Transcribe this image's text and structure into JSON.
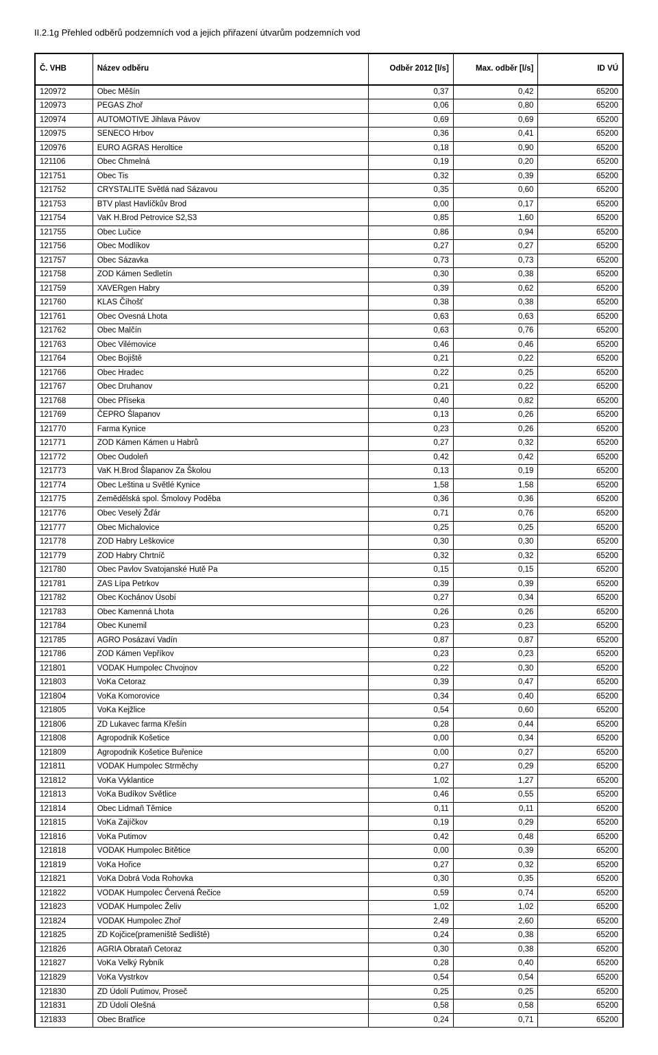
{
  "title": "II.2.1g  Přehled odběrů podzemních vod a jejich přiřazení útvarům podzemních vod",
  "columns": [
    "Č. VHB",
    "Název odběru",
    "Odběr 2012 [l/s]",
    "Max. odběr [l/s]",
    "ID VÚ"
  ],
  "rows": [
    [
      "120972",
      "Obec Měšín",
      "0,37",
      "0,42",
      "65200"
    ],
    [
      "120973",
      "PEGAS Zhoř",
      "0,06",
      "0,80",
      "65200"
    ],
    [
      "120974",
      "AUTOMOTIVE Jihlava Pávov",
      "0,69",
      "0,69",
      "65200"
    ],
    [
      "120975",
      "SENECO Hrbov",
      "0,36",
      "0,41",
      "65200"
    ],
    [
      "120976",
      "EURO AGRAS Heroltice",
      "0,18",
      "0,90",
      "65200"
    ],
    [
      "121106",
      "Obec Chmelná",
      "0,19",
      "0,20",
      "65200"
    ],
    [
      "121751",
      "Obec Tis",
      "0,32",
      "0,39",
      "65200"
    ],
    [
      "121752",
      "CRYSTALITE Světlá nad Sázavou",
      "0,35",
      "0,60",
      "65200"
    ],
    [
      "121753",
      "BTV plast Havlíčkův Brod",
      "0,00",
      "0,17",
      "65200"
    ],
    [
      "121754",
      "VaK H.Brod Petrovice S2,S3",
      "0,85",
      "1,60",
      "65200"
    ],
    [
      "121755",
      "Obec Lučice",
      "0,86",
      "0,94",
      "65200"
    ],
    [
      "121756",
      "Obec Modlíkov",
      "0,27",
      "0,27",
      "65200"
    ],
    [
      "121757",
      "Obec Sázavka",
      "0,73",
      "0,73",
      "65200"
    ],
    [
      "121758",
      "ZOD Kámen Sedletín",
      "0,30",
      "0,38",
      "65200"
    ],
    [
      "121759",
      "XAVERgen Habry",
      "0,39",
      "0,62",
      "65200"
    ],
    [
      "121760",
      "KLAS Číhošť",
      "0,38",
      "0,38",
      "65200"
    ],
    [
      "121761",
      "Obec Ovesná Lhota",
      "0,63",
      "0,63",
      "65200"
    ],
    [
      "121762",
      "Obec Malčín",
      "0,63",
      "0,76",
      "65200"
    ],
    [
      "121763",
      "Obec Vilémovice",
      "0,46",
      "0,46",
      "65200"
    ],
    [
      "121764",
      "Obec Bojiště",
      "0,21",
      "0,22",
      "65200"
    ],
    [
      "121766",
      "Obec Hradec",
      "0,22",
      "0,25",
      "65200"
    ],
    [
      "121767",
      "Obec Druhanov",
      "0,21",
      "0,22",
      "65200"
    ],
    [
      "121768",
      "Obec Příseka",
      "0,40",
      "0,82",
      "65200"
    ],
    [
      "121769",
      "ČEPRO Šlapanov",
      "0,13",
      "0,26",
      "65200"
    ],
    [
      "121770",
      "Farma Kynice",
      "0,23",
      "0,26",
      "65200"
    ],
    [
      "121771",
      "ZOD Kámen Kámen u Habrů",
      "0,27",
      "0,32",
      "65200"
    ],
    [
      "121772",
      "Obec Oudoleň",
      "0,42",
      "0,42",
      "65200"
    ],
    [
      "121773",
      "VaK H.Brod Šlapanov Za Školou",
      "0,13",
      "0,19",
      "65200"
    ],
    [
      "121774",
      "Obec Leština u Světlé Kynice",
      "1,58",
      "1,58",
      "65200"
    ],
    [
      "121775",
      "Zemědělská spol. Šmolovy Poděba",
      "0,36",
      "0,36",
      "65200"
    ],
    [
      "121776",
      "Obec Veselý Žďár",
      "0,71",
      "0,76",
      "65200"
    ],
    [
      "121777",
      "Obec Michalovice",
      "0,25",
      "0,25",
      "65200"
    ],
    [
      "121778",
      "ZOD Habry Leškovice",
      "0,30",
      "0,30",
      "65200"
    ],
    [
      "121779",
      "ZOD Habry Chrtníč",
      "0,32",
      "0,32",
      "65200"
    ],
    [
      "121780",
      "Obec Pavlov Svatojanské Hutě Pa",
      "0,15",
      "0,15",
      "65200"
    ],
    [
      "121781",
      "ZAS Lípa Petrkov",
      "0,39",
      "0,39",
      "65200"
    ],
    [
      "121782",
      "Obec Kochánov Úsobí",
      "0,27",
      "0,34",
      "65200"
    ],
    [
      "121783",
      "Obec Kamenná Lhota",
      "0,26",
      "0,26",
      "65200"
    ],
    [
      "121784",
      "Obec Kunemil",
      "0,23",
      "0,23",
      "65200"
    ],
    [
      "121785",
      "AGRO Posázaví Vadín",
      "0,87",
      "0,87",
      "65200"
    ],
    [
      "121786",
      "ZOD Kámen Vepříkov",
      "0,23",
      "0,23",
      "65200"
    ],
    [
      "121801",
      "VODAK Humpolec Chvojnov",
      "0,22",
      "0,30",
      "65200"
    ],
    [
      "121803",
      "VoKa Cetoraz",
      "0,39",
      "0,47",
      "65200"
    ],
    [
      "121804",
      "VoKa Komorovice",
      "0,34",
      "0,40",
      "65200"
    ],
    [
      "121805",
      "VoKa Kejžlice",
      "0,54",
      "0,60",
      "65200"
    ],
    [
      "121806",
      "ZD Lukavec farma Křešín",
      "0,28",
      "0,44",
      "65200"
    ],
    [
      "121808",
      "Agropodnik Košetice",
      "0,00",
      "0,34",
      "65200"
    ],
    [
      "121809",
      "Agropodnik Košetice Buřenice",
      "0,00",
      "0,27",
      "65200"
    ],
    [
      "121811",
      "VODAK Humpolec Strměchy",
      "0,27",
      "0,29",
      "65200"
    ],
    [
      "121812",
      "VoKa Vyklantice",
      "1,02",
      "1,27",
      "65200"
    ],
    [
      "121813",
      "VoKa Budíkov Světlice",
      "0,46",
      "0,55",
      "65200"
    ],
    [
      "121814",
      "Obec Lidmaň Těmice",
      "0,11",
      "0,11",
      "65200"
    ],
    [
      "121815",
      "VoKa Zajíčkov",
      "0,19",
      "0,29",
      "65200"
    ],
    [
      "121816",
      "VoKa Putimov",
      "0,42",
      "0,48",
      "65200"
    ],
    [
      "121818",
      "VODAK Humpolec Bitětice",
      "0,00",
      "0,39",
      "65200"
    ],
    [
      "121819",
      "VoKa Hořice",
      "0,27",
      "0,32",
      "65200"
    ],
    [
      "121821",
      "VoKa Dobrá Voda Rohovka",
      "0,30",
      "0,35",
      "65200"
    ],
    [
      "121822",
      "VODAK Humpolec Červená Řečice",
      "0,59",
      "0,74",
      "65200"
    ],
    [
      "121823",
      "VODAK Humpolec Želiv",
      "1,02",
      "1,02",
      "65200"
    ],
    [
      "121824",
      "VODAK Humpolec Zhoř",
      "2,49",
      "2,60",
      "65200"
    ],
    [
      "121825",
      "ZD Kojčice(prameniště Sedliště)",
      "0,24",
      "0,38",
      "65200"
    ],
    [
      "121826",
      "AGRIA Obrataň Cetoraz",
      "0,30",
      "0,38",
      "65200"
    ],
    [
      "121827",
      "VoKa Velký Rybník",
      "0,28",
      "0,40",
      "65200"
    ],
    [
      "121829",
      "VoKa Vystrkov",
      "0,54",
      "0,54",
      "65200"
    ],
    [
      "121830",
      "ZD Údolí Putimov, Proseč",
      "0,25",
      "0,25",
      "65200"
    ],
    [
      "121831",
      "ZD Údolí Olešná",
      "0,58",
      "0,58",
      "65200"
    ],
    [
      "121833",
      "Obec Bratřice",
      "0,24",
      "0,71",
      "65200"
    ]
  ]
}
